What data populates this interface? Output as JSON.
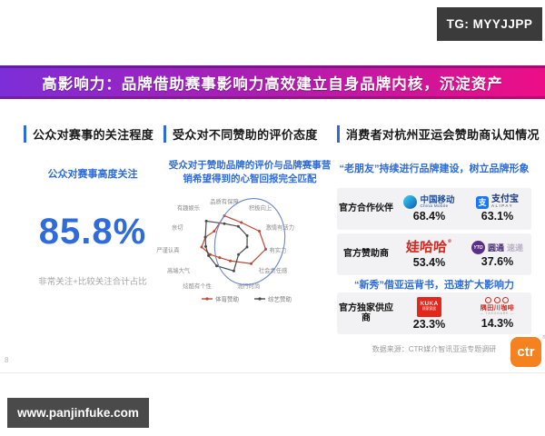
{
  "watermarks": {
    "tg": "TG: MYYJJPP",
    "site": "www.panjinfuke.com"
  },
  "banner": {
    "text": "高影响力：品牌借助赛事影响力高效建立自身品牌内核，沉淀资产"
  },
  "page_number": "8",
  "columns": {
    "attention": {
      "header": "公众对赛事的关注程度",
      "subtitle": "公众对赛事高度关注",
      "value": "85.8%",
      "caption": "非常关注+比较关注合计占比"
    },
    "evaluation": {
      "header": "受众对不同赞助的评价态度",
      "subtitle_line1": "受众对于赞助品牌的评价与品牌赛事营",
      "subtitle_line2": "销希望得到的心智回报完全匹配"
    },
    "awareness": {
      "header": "消费者对杭州亚运会赞助商认知情况",
      "subtitle_old": "“老朋友”持续进行品牌建设，树立品牌形象",
      "subtitle_new": "“新秀”借亚运背书，迅速扩大影响力",
      "rows": [
        {
          "label": "官方合作伙伴",
          "brands": [
            {
              "name": "中国移动",
              "sub": "China Mobile",
              "value": "68.4%"
            },
            {
              "glyph": "支",
              "name": "支付宝",
              "sub": "ALIPAY",
              "value": "63.1%"
            }
          ]
        },
        {
          "label": "官方赞助商",
          "brands": [
            {
              "name": "娃哈哈",
              "reg": "®",
              "value": "53.4%"
            },
            {
              "icon_text": "YTO",
              "name": "圆通",
              "sub": "速递",
              "value": "37.6%"
            }
          ]
        },
        {
          "label": "官方独家供应商",
          "brands": [
            {
              "box_line1": "KUKA",
              "box_line2": "顾家家居",
              "value": "23.3%"
            },
            {
              "name": "隅田川咖啡",
              "sub": "— TASOGARE —",
              "value": "14.3%"
            }
          ]
        }
      ]
    }
  },
  "footer": {
    "source": "数据来源：CTR媒介智讯亚运专题调研",
    "logo": "ctr"
  },
  "chart_data": {
    "type": "radar",
    "title": "受众对不同赞助的评价态度",
    "axes": [
      "品质有保障",
      "积极向上",
      "激情有活力",
      "有实力",
      "社会责任感",
      "流行时尚",
      "炫酷有个性",
      "高端大气",
      "严谨认真",
      "亲切",
      "有趣娱乐"
    ],
    "scale": [
      0,
      1
    ],
    "series": [
      {
        "name": "体育赞助",
        "color": "#bf4733",
        "values": [
          0.83,
          0.75,
          0.92,
          1.0,
          0.85,
          0.5,
          0.4,
          0.45,
          0.55,
          0.5,
          0.45
        ]
      },
      {
        "name": "综艺赞助",
        "color": "#4a4a4a",
        "values": [
          0.6,
          0.62,
          0.6,
          0.55,
          0.45,
          0.8,
          0.65,
          0.5,
          0.45,
          0.5,
          0.8
        ]
      }
    ],
    "legend_position": "bottom",
    "grid": false,
    "annotation": "blue-ellipse-highlight-over-right-side"
  }
}
